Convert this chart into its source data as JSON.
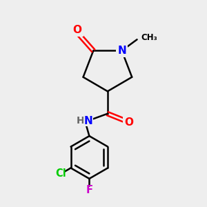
{
  "bg_color": "#eeeeee",
  "bond_color": "#000000",
  "N_color": "#0000ff",
  "O_color": "#ff0000",
  "Cl_color": "#00cc00",
  "F_color": "#cc00cc",
  "figsize": [
    3.0,
    3.0
  ],
  "dpi": 100,
  "bond_lw": 1.8,
  "font_size_atom": 11,
  "xlim": [
    0,
    10
  ],
  "ylim": [
    0,
    10
  ]
}
